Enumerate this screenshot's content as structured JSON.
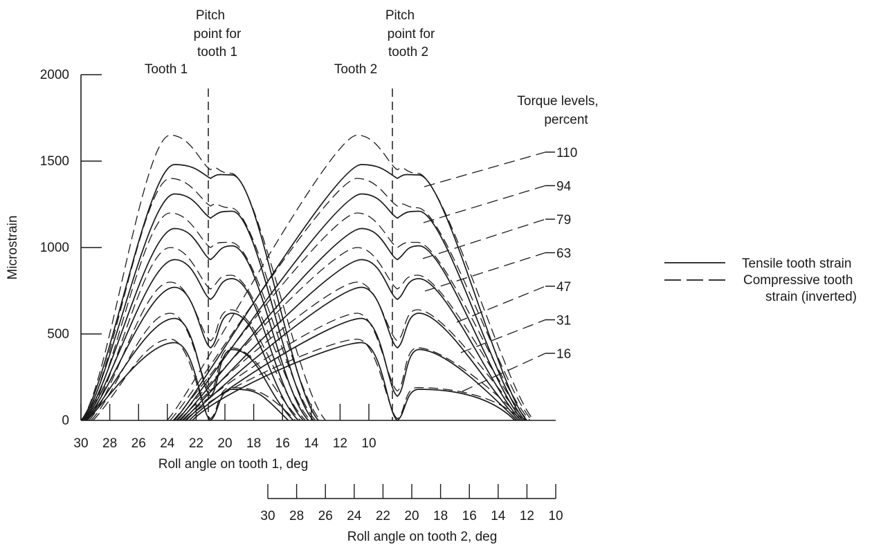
{
  "chart_data": {
    "type": "line",
    "title": "",
    "ylabel": "Microstrain",
    "xlabel": "Roll angle on tooth 1, deg",
    "xlabel2": "Roll angle on tooth 2, deg",
    "ylim": [
      0,
      2000
    ],
    "yticks": [
      "0",
      "500",
      "1000",
      "1500",
      "2000"
    ],
    "x_ticks_tooth1": [
      "30",
      "28",
      "26",
      "24",
      "22",
      "20",
      "18",
      "16",
      "14",
      "12",
      "10"
    ],
    "x_ticks_tooth2": [
      "30",
      "28",
      "26",
      "24",
      "22",
      "20",
      "18",
      "16",
      "14",
      "12",
      "10"
    ],
    "tooth1_label": "Tooth 1",
    "tooth2_label": "Tooth 2",
    "pitch1_label": [
      "Pitch",
      "point for",
      "tooth 1"
    ],
    "pitch2_label": [
      "Pitch",
      "point for",
      "tooth 2"
    ],
    "pitch_point_tooth1_deg": 21,
    "pitch_point_tooth2_deg": 21,
    "torque_title": [
      "Torque levels,",
      "percent"
    ],
    "torque_levels": [
      "110",
      "94",
      "79",
      "63",
      "47",
      "31",
      "16"
    ],
    "legend": [
      {
        "label": "Tensile tooth strain",
        "style": "solid"
      },
      {
        "label": "Compressive tooth",
        "label2": "strain (inverted)",
        "style": "dashed"
      }
    ],
    "legend_placement": "right",
    "grid": false,
    "series": [
      {
        "torque": "110",
        "tensile": {
          "peak1": 1480,
          "dip": 1400,
          "peak2": 1420
        },
        "compressive": {
          "peak1": 1650,
          "dip": 1450,
          "peak2": 1430
        }
      },
      {
        "torque": "94",
        "tensile": {
          "peak1": 1310,
          "dip": 1170,
          "peak2": 1210
        },
        "compressive": {
          "peak1": 1400,
          "dip": 1240,
          "peak2": 1230
        }
      },
      {
        "torque": "79",
        "tensile": {
          "peak1": 1110,
          "dip": 930,
          "peak2": 1010
        },
        "compressive": {
          "peak1": 1200,
          "dip": 1000,
          "peak2": 1030
        }
      },
      {
        "torque": "63",
        "tensile": {
          "peak1": 930,
          "dip": 700,
          "peak2": 820
        },
        "compressive": {
          "peak1": 1000,
          "dip": 760,
          "peak2": 840
        }
      },
      {
        "torque": "47",
        "tensile": {
          "peak1": 770,
          "dip": 420,
          "peak2": 620
        },
        "compressive": {
          "peak1": 800,
          "dip": 460,
          "peak2": 640
        }
      },
      {
        "torque": "31",
        "tensile": {
          "peak1": 590,
          "dip": 140,
          "peak2": 410
        },
        "compressive": {
          "peak1": 620,
          "dip": 170,
          "peak2": 420
        }
      },
      {
        "torque": "16",
        "tensile": {
          "peak1": 450,
          "dip": 0,
          "peak2": 180
        },
        "compressive": {
          "peak1": 470,
          "dip": 10,
          "peak2": 190
        }
      }
    ],
    "colors": {
      "ink": "#1a1a1a",
      "background": "#ffffff"
    }
  }
}
